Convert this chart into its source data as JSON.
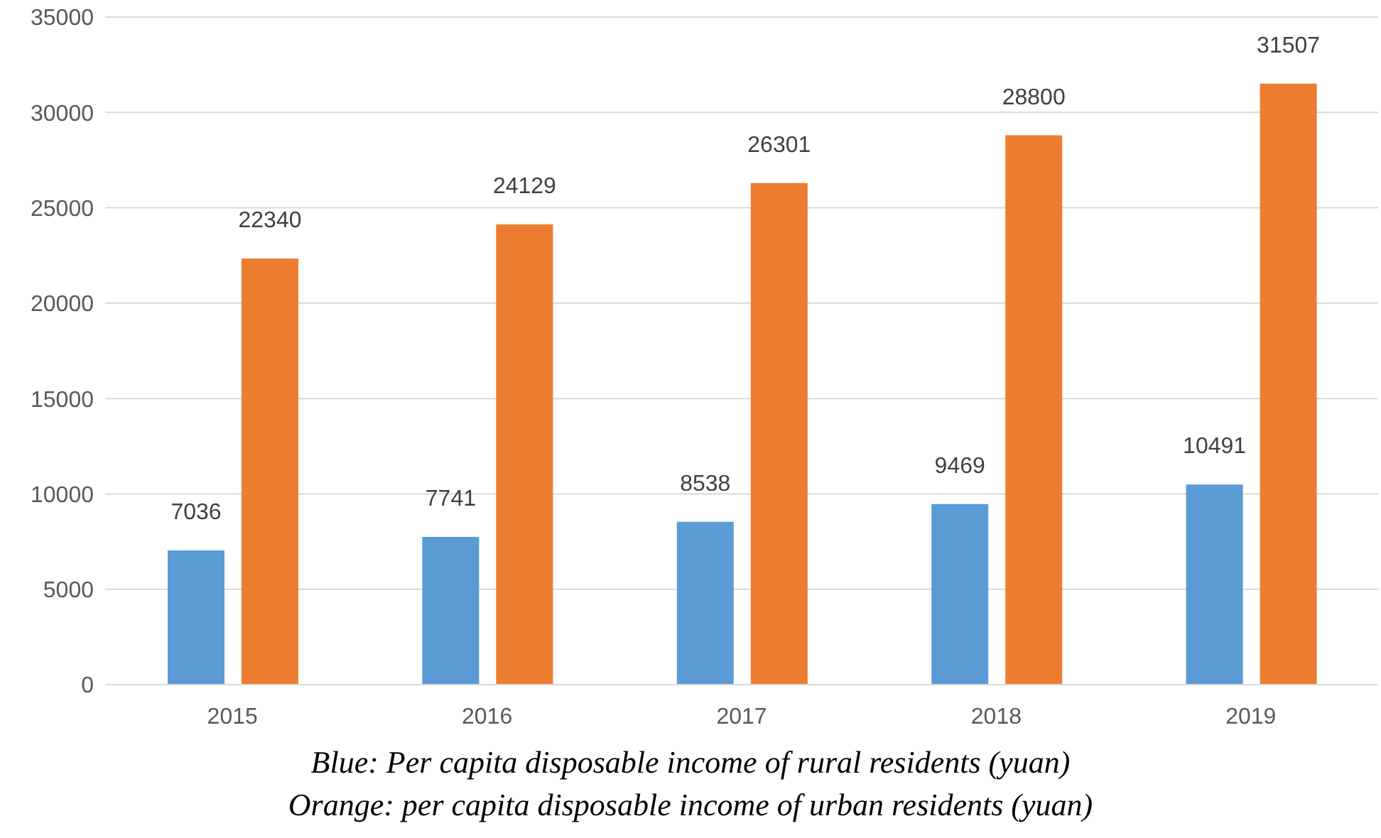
{
  "chart_data": {
    "type": "bar",
    "categories": [
      "2015",
      "2016",
      "2017",
      "2018",
      "2019"
    ],
    "series": [
      {
        "color": "#5b9bd5",
        "values": [
          7036,
          7741,
          8538,
          9469,
          10491
        ]
      },
      {
        "color": "#ed7d31",
        "values": [
          22340,
          24129,
          26301,
          28800,
          31507
        ]
      }
    ],
    "ylim": [
      0,
      35000
    ],
    "yticks": [
      0,
      5000,
      10000,
      15000,
      20000,
      25000,
      30000,
      35000
    ],
    "grid": "y",
    "data_labels": true,
    "annotations": [
      "Blue: Per capita disposable income of rural residents (yuan)",
      "Orange: per capita disposable income of urban residents (yuan)"
    ]
  }
}
